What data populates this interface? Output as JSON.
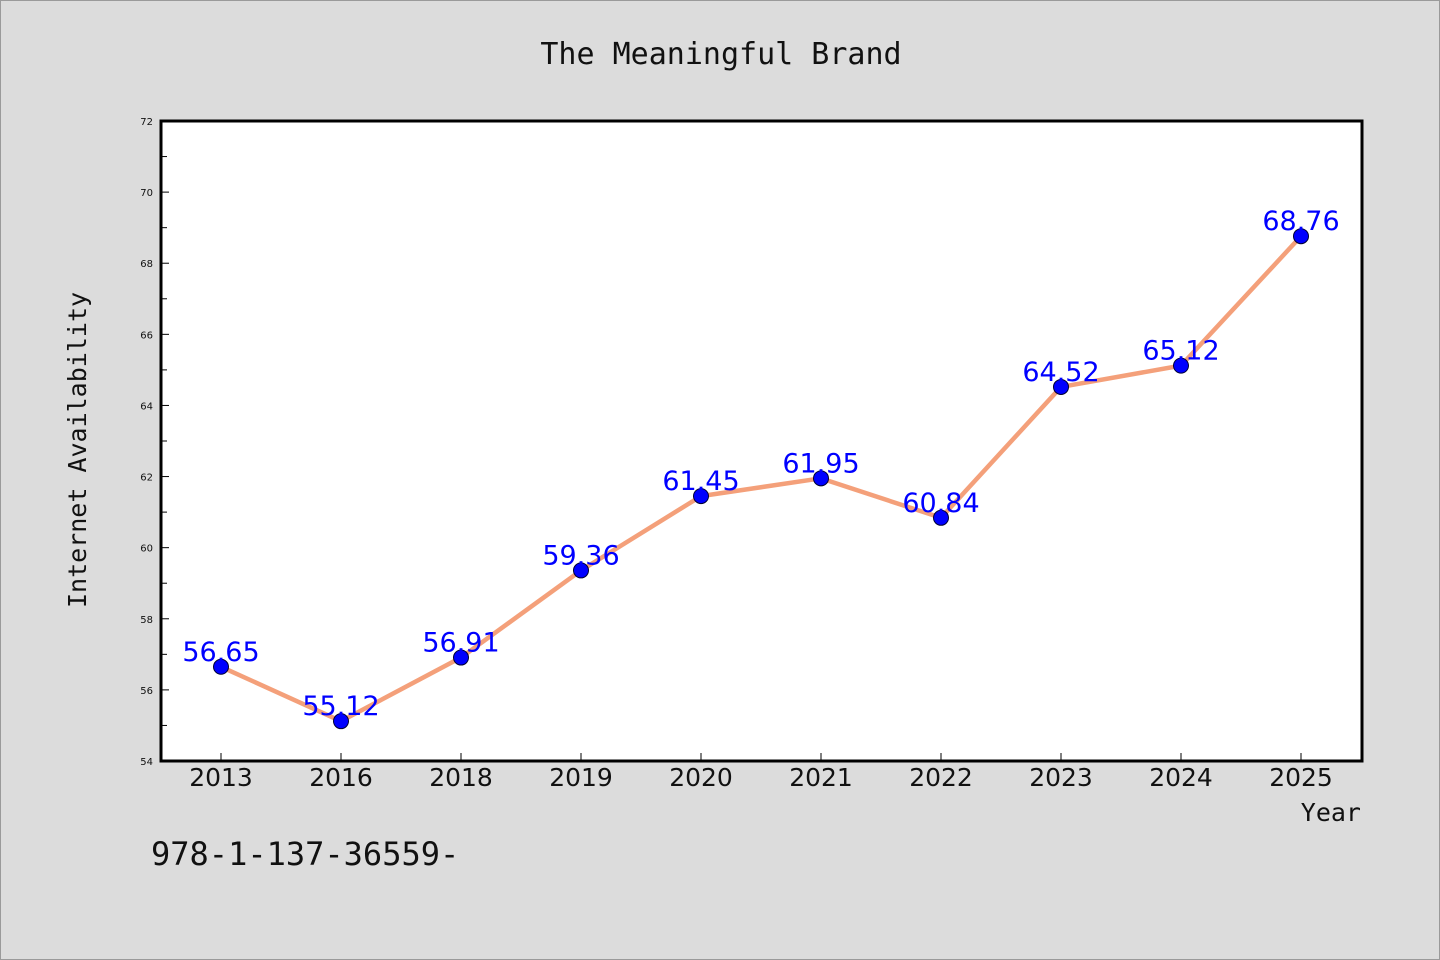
{
  "chart_data": {
    "type": "line",
    "title": "The Meaningful Brand",
    "xlabel": "Year",
    "ylabel": "Internet Availability",
    "categories": [
      "2013",
      "2016",
      "2018",
      "2019",
      "2020",
      "2021",
      "2022",
      "2023",
      "2024",
      "2025"
    ],
    "series": [
      {
        "values": [
          56.65,
          55.12,
          56.91,
          59.36,
          61.45,
          61.95,
          60.84,
          64.52,
          65.12,
          68.76
        ],
        "line_color": "#f4a07a",
        "marker_color": "#0000ff"
      }
    ],
    "data_labels": [
      "56.65",
      "55.12",
      "56.91",
      "59.36",
      "61.45",
      "61.95",
      "60.84",
      "64.52",
      "65.12",
      "68.76"
    ],
    "ylim": [
      54,
      72
    ],
    "y_ticks": [
      "54",
      "56",
      "58",
      "60",
      "62",
      "64",
      "66",
      "68",
      "70",
      "72"
    ],
    "grid": false,
    "legend": "none",
    "footer_text": "978-1-137-36559-"
  }
}
